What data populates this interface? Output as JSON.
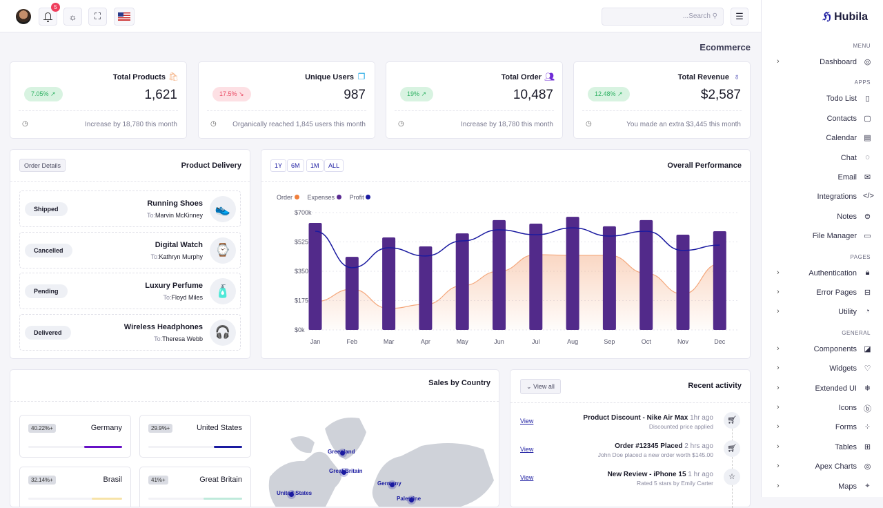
{
  "header": {
    "notification_count": "5",
    "search_placeholder": "...Search"
  },
  "sidebar": {
    "brand": "Hubila",
    "sections": [
      {
        "title": "MENU",
        "items": [
          {
            "label": "Dashboard",
            "icon": "◎",
            "chevron": true
          }
        ]
      },
      {
        "title": "APPS",
        "items": [
          {
            "label": "Todo List",
            "icon": "▯"
          },
          {
            "label": "Contacts",
            "icon": "▢"
          },
          {
            "label": "Calendar",
            "icon": "▤"
          },
          {
            "label": "Chat",
            "icon": "◌"
          },
          {
            "label": "Email",
            "icon": "✉"
          },
          {
            "label": "Integrations",
            "icon": "</>"
          },
          {
            "label": "Notes",
            "icon": "⊜"
          },
          {
            "label": "File Manager",
            "icon": "▭"
          }
        ]
      },
      {
        "title": "PAGES",
        "items": [
          {
            "label": "Authentication",
            "icon": "🔒︎",
            "chevron": true
          },
          {
            "label": "Error Pages",
            "icon": "⊟",
            "chevron": true
          },
          {
            "label": "Utility",
            "icon": "◔",
            "chevron": true
          }
        ]
      },
      {
        "title": "GENERAL",
        "items": [
          {
            "label": "Components",
            "icon": "◪",
            "chevron": true
          },
          {
            "label": "Widgets",
            "icon": "♡",
            "chevron": true
          },
          {
            "label": "Extended UI",
            "icon": "❄",
            "chevron": true
          },
          {
            "label": "Icons",
            "icon": "ⓑ",
            "chevron": true
          },
          {
            "label": "Forms",
            "icon": "⁘",
            "chevron": true
          },
          {
            "label": "Tables",
            "icon": "⊞",
            "chevron": true
          },
          {
            "label": "Apex Charts",
            "icon": "◎",
            "chevron": true
          },
          {
            "label": "Maps",
            "icon": "⌖",
            "chevron": true
          }
        ]
      }
    ]
  },
  "page_title": "Ecommerce",
  "stats": [
    {
      "title": "Total Products",
      "value": "1,621",
      "change": "7.05%",
      "trend": "up",
      "footer": "Increase by 18,780 this month",
      "icon": "🛍︎",
      "icon_color": "#f4b183"
    },
    {
      "title": "Unique Users",
      "value": "987",
      "change": "17.5%",
      "trend": "down",
      "footer": "Organically reached 1,845 users this month",
      "icon": "❐",
      "icon_color": "#1ea7e4"
    },
    {
      "title": "Total Order",
      "value": "10,487",
      "change": "19%",
      "trend": "up",
      "footer": "Increase by 18,780 this month",
      "icon": "👥︎",
      "icon_color": "#6f2bd6"
    },
    {
      "title": "Total Revenue",
      "value": "$2,587",
      "change": "12.48%",
      "trend": "up",
      "footer": "You made an extra $3,445 this month",
      "icon": "♁",
      "icon_color": "#1a1aa0"
    }
  ],
  "delivery": {
    "title": "Product Delivery",
    "button": "Order Details",
    "to_prefix": "To:",
    "items": [
      {
        "status": "Shipped",
        "name": "Running Shoes",
        "to": "Marvin McKinney",
        "icon": "👟"
      },
      {
        "status": "Cancelled",
        "name": "Digital Watch",
        "to": "Kathryn Murphy",
        "icon": "⌚"
      },
      {
        "status": "Pending",
        "name": "Luxury Perfume",
        "to": "Floyd Miles",
        "icon": "🧴"
      },
      {
        "status": "Delivered",
        "name": "Wireless Headphones",
        "to": "Theresa Webb",
        "icon": "🎧"
      }
    ]
  },
  "performance": {
    "title": "Overall Performance",
    "ranges": [
      "1Y",
      "6M",
      "1M",
      "ALL"
    ]
  },
  "chart_data": {
    "type": "bar",
    "title": "Overall Performance",
    "categories": [
      "Jan",
      "Feb",
      "Mar",
      "Apr",
      "May",
      "Jun",
      "Jul",
      "Aug",
      "Sep",
      "Oct",
      "Nov",
      "Dec"
    ],
    "legend": [
      {
        "name": "Order",
        "color": "#f07f3c"
      },
      {
        "name": "Expenses",
        "color": "#5a2a92"
      },
      {
        "name": "Profit",
        "color": "#1a1aa0"
      }
    ],
    "series": [
      {
        "name": "Order",
        "type": "bar",
        "color": "#522a8a",
        "values": [
          638,
          436,
          552,
          498,
          576,
          655,
          634,
          675,
          618,
          655,
          568,
          589
        ]
      },
      {
        "name": "Expenses",
        "type": "area",
        "color": "#f4a67a",
        "values": [
          169,
          243,
          128,
          152,
          264,
          350,
          449,
          445,
          445,
          338,
          214,
          395
        ]
      },
      {
        "name": "Profit",
        "type": "line",
        "color": "#1a1aa0",
        "values": [
          589,
          371,
          490,
          441,
          531,
          597,
          568,
          609,
          560,
          589,
          474,
          506
        ]
      }
    ],
    "yticks": [
      "$0k",
      "$175k",
      "$350k",
      "$525k",
      "$700k"
    ],
    "ylim": [
      0,
      700
    ],
    "unit": "k$",
    "grid": true,
    "legend_position": "top-left"
  },
  "sales": {
    "title": "Sales by Country",
    "countries": [
      {
        "pct": "40.22%+",
        "name": "Germany",
        "value": 40.22,
        "color": "#6610c6"
      },
      {
        "pct": "29.9%+",
        "name": "United States",
        "value": 29.9,
        "color": "#1a1aa0"
      },
      {
        "pct": "32.14%+",
        "name": "Brasil",
        "value": 32.14,
        "color": "#f7e3a8"
      },
      {
        "pct": "41%+",
        "name": "Great Britain",
        "value": 41,
        "color": "#bfeadb"
      }
    ],
    "map_labels": [
      "Greenland",
      "Great Britain",
      "Germany",
      "United States",
      "Palestine"
    ]
  },
  "activity": {
    "title": "Recent activity",
    "button": "View all",
    "items": [
      {
        "title": "Product Discount - Nike Air Max",
        "time": "1hr ago",
        "sub": "Discounted price applied",
        "link": "View",
        "icon": "🛒︎"
      },
      {
        "title": "Order #12345 Placed",
        "time": "2 hrs ago",
        "sub": "John Doe placed a new order worth $145.00",
        "link": "View",
        "icon": "🛒︎"
      },
      {
        "title": "New Review - iPhone 15",
        "time": "1 hr ago",
        "sub": "Rated 5 stars by Emily Carter",
        "link": "View",
        "icon": "☆"
      }
    ]
  }
}
